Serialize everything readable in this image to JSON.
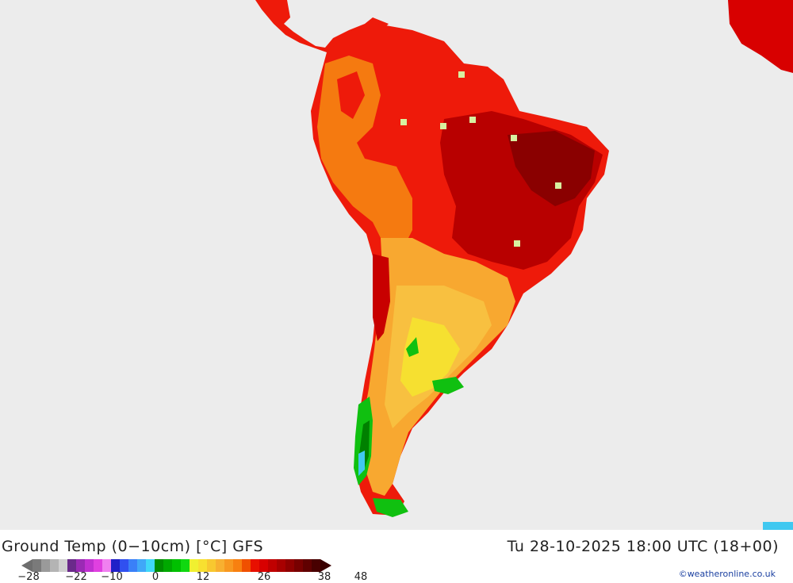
{
  "title": "Ground Temp (0−10cm) [°C] GFS",
  "datetime": "Tu 28-10-2025 18:00 UTC (18+00)",
  "credit": "©weatheronline.co.uk",
  "legend": {
    "ticks": [
      "−28",
      "−22",
      "−10",
      "0",
      "12",
      "26",
      "38",
      "48"
    ],
    "colors": [
      "#7a7a7a",
      "#9a9a9a",
      "#b4b4b4",
      "#d0d0d0",
      "#6a2a8a",
      "#9a2ab4",
      "#c030d0",
      "#e040e0",
      "#f080f0",
      "#2020c8",
      "#3050f0",
      "#3a80f8",
      "#40a8f8",
      "#40d8f8",
      "#008c00",
      "#00a800",
      "#00c000",
      "#10d810",
      "#f0f030",
      "#f8e030",
      "#f8c830",
      "#f8b030",
      "#f89820",
      "#f88010",
      "#f05000",
      "#e81000",
      "#d80000",
      "#c00000",
      "#a80000",
      "#900000",
      "#780000",
      "#600000",
      "#480000"
    ]
  },
  "map_colors": {
    "ocean": "#ececec",
    "hot_dark": "#8a0000",
    "hot": "#d80000",
    "red": "#ee1a0a",
    "orange": "#f57a10",
    "light_orange": "#f8a830",
    "yellow": "#f6e030",
    "green": "#10c010",
    "dark_green": "#008000",
    "cyan": "#40c8f0"
  }
}
